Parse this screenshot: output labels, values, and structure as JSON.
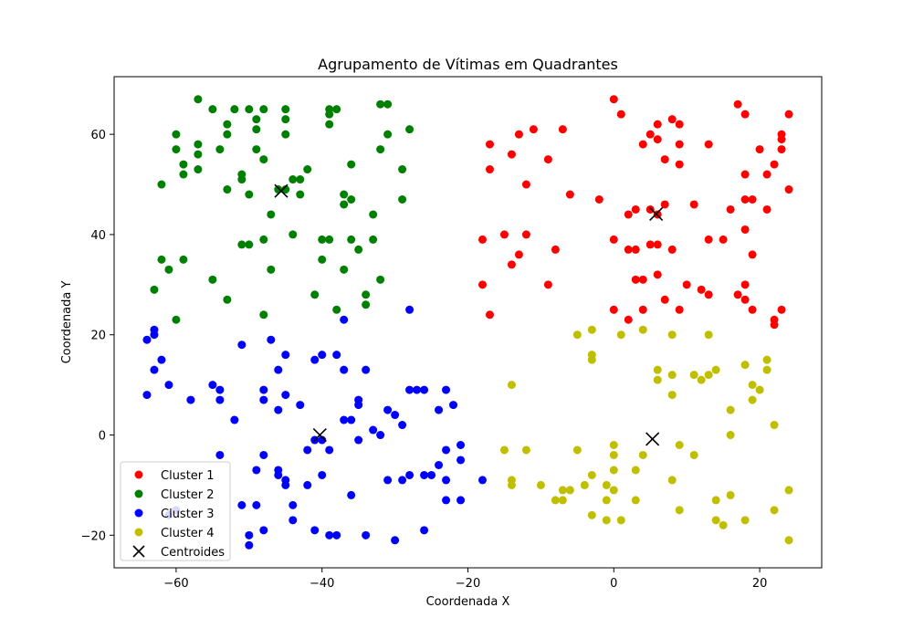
{
  "chart_data": {
    "type": "scatter",
    "title": "Agrupamento de Vítimas em Quadrantes",
    "xlabel": "Coordenada X",
    "ylabel": "Coordenada Y",
    "xlim": [
      -68.5,
      28.5
    ],
    "ylim": [
      -26.5,
      71.5
    ],
    "xticks": [
      -60,
      -40,
      -20,
      0,
      20
    ],
    "yticks": [
      -20,
      0,
      20,
      40,
      60
    ],
    "grid": false,
    "legend_position": "lower-left",
    "series": [
      {
        "name": "Cluster 1",
        "color": "#ff0000",
        "marker": "circle",
        "points": [
          [
            0,
            67
          ],
          [
            1,
            64
          ],
          [
            4,
            58
          ],
          [
            5,
            60
          ],
          [
            6,
            62
          ],
          [
            6,
            59
          ],
          [
            8,
            63
          ],
          [
            9,
            62
          ],
          [
            9,
            58
          ],
          [
            7,
            55
          ],
          [
            9,
            54
          ],
          [
            13,
            58
          ],
          [
            17,
            66
          ],
          [
            18,
            64
          ],
          [
            20,
            57
          ],
          [
            23,
            60
          ],
          [
            23,
            59
          ],
          [
            23,
            57
          ],
          [
            24,
            64
          ],
          [
            18,
            52
          ],
          [
            22,
            54
          ],
          [
            21,
            52
          ],
          [
            24,
            49
          ],
          [
            -17,
            58
          ],
          [
            -17,
            53
          ],
          [
            -13,
            60
          ],
          [
            -11,
            61
          ],
          [
            -7,
            61
          ],
          [
            -14,
            56
          ],
          [
            -9,
            55
          ],
          [
            -12,
            50
          ],
          [
            -6,
            48
          ],
          [
            -2,
            47
          ],
          [
            2,
            44
          ],
          [
            3,
            45
          ],
          [
            5,
            45
          ],
          [
            6,
            44
          ],
          [
            7,
            46
          ],
          [
            11,
            46
          ],
          [
            16,
            45
          ],
          [
            18,
            47
          ],
          [
            19,
            47
          ],
          [
            21,
            45
          ],
          [
            -18,
            39
          ],
          [
            -15,
            40
          ],
          [
            -13,
            36
          ],
          [
            -12,
            40
          ],
          [
            -14,
            34
          ],
          [
            -8,
            37
          ],
          [
            -18,
            30
          ],
          [
            -17,
            24
          ],
          [
            -9,
            30
          ],
          [
            0,
            39
          ],
          [
            2,
            37
          ],
          [
            3,
            37
          ],
          [
            5,
            38
          ],
          [
            6,
            38
          ],
          [
            8,
            37
          ],
          [
            13,
            39
          ],
          [
            15,
            39
          ],
          [
            18,
            41
          ],
          [
            19,
            36
          ],
          [
            3,
            31
          ],
          [
            4,
            31
          ],
          [
            6,
            32
          ],
          [
            10,
            30
          ],
          [
            12,
            29
          ],
          [
            13,
            28
          ],
          [
            17,
            28
          ],
          [
            18,
            30
          ],
          [
            18,
            27
          ],
          [
            7,
            27
          ],
          [
            0,
            25
          ],
          [
            2,
            23
          ],
          [
            4,
            25
          ],
          [
            9,
            25
          ],
          [
            19,
            25
          ],
          [
            22,
            23
          ],
          [
            22,
            22
          ],
          [
            23,
            25
          ]
        ]
      },
      {
        "name": "Cluster 2",
        "color": "#008000",
        "marker": "circle",
        "points": [
          [
            -57,
            67
          ],
          [
            -55,
            65
          ],
          [
            -52,
            65
          ],
          [
            -50,
            65
          ],
          [
            -48,
            65
          ],
          [
            -45,
            65
          ],
          [
            -39,
            65
          ],
          [
            -39,
            64
          ],
          [
            -38,
            65
          ],
          [
            -32,
            66
          ],
          [
            -31,
            66
          ],
          [
            -60,
            60
          ],
          [
            -53,
            62
          ],
          [
            -53,
            60
          ],
          [
            -49,
            63
          ],
          [
            -49,
            61
          ],
          [
            -45,
            63
          ],
          [
            -45,
            60
          ],
          [
            -39,
            62
          ],
          [
            -31,
            60
          ],
          [
            -28,
            61
          ],
          [
            -60,
            57
          ],
          [
            -57,
            58
          ],
          [
            -57,
            56
          ],
          [
            -54,
            57
          ],
          [
            -49,
            57
          ],
          [
            -48,
            55
          ],
          [
            -59,
            54
          ],
          [
            -59,
            52
          ],
          [
            -57,
            53
          ],
          [
            -51,
            52
          ],
          [
            -51,
            51
          ],
          [
            -36,
            54
          ],
          [
            -32,
            57
          ],
          [
            -29,
            53
          ],
          [
            -62,
            50
          ],
          [
            -53,
            49
          ],
          [
            -50,
            48
          ],
          [
            -46,
            49
          ],
          [
            -45,
            49
          ],
          [
            -44,
            51
          ],
          [
            -43,
            51
          ],
          [
            -43,
            48
          ],
          [
            -42,
            53
          ],
          [
            -37,
            48
          ],
          [
            -37,
            46
          ],
          [
            -36,
            47
          ],
          [
            -33,
            44
          ],
          [
            -29,
            47
          ],
          [
            -47,
            44
          ],
          [
            -44,
            40
          ],
          [
            -40,
            39
          ],
          [
            -39,
            39
          ],
          [
            -36,
            39
          ],
          [
            -35,
            37
          ],
          [
            -33,
            39
          ],
          [
            -51,
            38
          ],
          [
            -50,
            38
          ],
          [
            -48,
            39
          ],
          [
            -62,
            35
          ],
          [
            -61,
            33
          ],
          [
            -59,
            35
          ],
          [
            -47,
            33
          ],
          [
            -40,
            35
          ],
          [
            -37,
            33
          ],
          [
            -55,
            31
          ],
          [
            -32,
            31
          ],
          [
            -63,
            29
          ],
          [
            -53,
            27
          ],
          [
            -41,
            28
          ],
          [
            -38,
            25
          ],
          [
            -34,
            28
          ],
          [
            -34,
            26
          ],
          [
            -48,
            24
          ],
          [
            -60,
            23
          ]
        ]
      },
      {
        "name": "Cluster 3",
        "color": "#0000ff",
        "marker": "circle",
        "points": [
          [
            -63,
            21
          ],
          [
            -63,
            20
          ],
          [
            -64,
            19
          ],
          [
            -62,
            15
          ],
          [
            -63,
            13
          ],
          [
            -61,
            10
          ],
          [
            -64,
            8
          ],
          [
            -58,
            7
          ],
          [
            -51,
            18
          ],
          [
            -47,
            19
          ],
          [
            -46,
            13
          ],
          [
            -45,
            16
          ],
          [
            -37,
            23
          ],
          [
            -28,
            25
          ],
          [
            -55,
            10
          ],
          [
            -54,
            9
          ],
          [
            -54,
            7
          ],
          [
            -48,
            9
          ],
          [
            -48,
            7
          ],
          [
            -46,
            5
          ],
          [
            -45,
            8
          ],
          [
            -43,
            6
          ],
          [
            -41,
            15
          ],
          [
            -40,
            16
          ],
          [
            -38,
            16
          ],
          [
            -37,
            13
          ],
          [
            -34,
            13
          ],
          [
            -35,
            7
          ],
          [
            -35,
            6
          ],
          [
            -37,
            3
          ],
          [
            -36,
            3
          ],
          [
            -33,
            1
          ],
          [
            -32,
            0
          ],
          [
            -31,
            5
          ],
          [
            -30,
            4
          ],
          [
            -29,
            2
          ],
          [
            -28,
            9
          ],
          [
            -27,
            9
          ],
          [
            -26,
            9
          ],
          [
            -24,
            5
          ],
          [
            -23,
            9
          ],
          [
            -22,
            6
          ],
          [
            -52,
            3
          ],
          [
            -41,
            -1
          ],
          [
            -40,
            -1
          ],
          [
            -42,
            -3
          ],
          [
            -39,
            -3
          ],
          [
            -35,
            -1
          ],
          [
            -23,
            -3
          ],
          [
            -21,
            -2
          ],
          [
            -54,
            -4
          ],
          [
            -48,
            -4
          ],
          [
            -49,
            -7
          ],
          [
            -46,
            -7
          ],
          [
            -46,
            -8
          ],
          [
            -45,
            -9
          ],
          [
            -45,
            -10
          ],
          [
            -42,
            -10
          ],
          [
            -40,
            -8
          ],
          [
            -28,
            -8
          ],
          [
            -29,
            -9
          ],
          [
            -31,
            -9
          ],
          [
            -26,
            -8
          ],
          [
            -25,
            -8
          ],
          [
            -24,
            -6
          ],
          [
            -23,
            -9
          ],
          [
            -21,
            -5
          ],
          [
            -18,
            -9
          ],
          [
            -51,
            -14
          ],
          [
            -49,
            -14
          ],
          [
            -44,
            -14
          ],
          [
            -36,
            -12
          ],
          [
            -23,
            -13
          ],
          [
            -21,
            -13
          ],
          [
            -60,
            -15
          ],
          [
            -61,
            -16
          ],
          [
            -50,
            -20
          ],
          [
            -48,
            -19
          ],
          [
            -44,
            -17
          ],
          [
            -41,
            -19
          ],
          [
            -39,
            -20
          ],
          [
            -38,
            -20
          ],
          [
            -34,
            -20
          ],
          [
            -30,
            -21
          ],
          [
            -26,
            -19
          ],
          [
            -50,
            -22
          ]
        ]
      },
      {
        "name": "Cluster 4",
        "color": "#bfbf00",
        "marker": "circle",
        "points": [
          [
            -5,
            20
          ],
          [
            -3,
            21
          ],
          [
            1,
            20
          ],
          [
            4,
            21
          ],
          [
            8,
            20
          ],
          [
            13,
            20
          ],
          [
            -3,
            16
          ],
          [
            -3,
            15
          ],
          [
            6,
            13
          ],
          [
            6,
            11
          ],
          [
            8,
            12
          ],
          [
            11,
            12
          ],
          [
            12,
            11
          ],
          [
            13,
            12
          ],
          [
            14,
            13
          ],
          [
            18,
            14
          ],
          [
            21,
            15
          ],
          [
            21,
            13
          ],
          [
            -14,
            10
          ],
          [
            19,
            10
          ],
          [
            20,
            9
          ],
          [
            8,
            8
          ],
          [
            19,
            7
          ],
          [
            16,
            5
          ],
          [
            22,
            2
          ],
          [
            16,
            0
          ],
          [
            -15,
            -3
          ],
          [
            -12,
            -3
          ],
          [
            -5,
            -3
          ],
          [
            0,
            -2
          ],
          [
            0,
            -4
          ],
          [
            4,
            -4
          ],
          [
            9,
            -2
          ],
          [
            11,
            -4
          ],
          [
            -14,
            -9
          ],
          [
            -14,
            -10
          ],
          [
            -10,
            -10
          ],
          [
            -7,
            -11
          ],
          [
            -6,
            -11
          ],
          [
            -4,
            -10
          ],
          [
            -3,
            -8
          ],
          [
            -1,
            -10
          ],
          [
            0,
            -7
          ],
          [
            0,
            -11
          ],
          [
            3,
            -7
          ],
          [
            8,
            -9
          ],
          [
            24,
            -11
          ],
          [
            -8,
            -13
          ],
          [
            -7,
            -13
          ],
          [
            -1,
            -13
          ],
          [
            3,
            -13
          ],
          [
            14,
            -13
          ],
          [
            16,
            -12
          ],
          [
            -3,
            -16
          ],
          [
            -1,
            -17
          ],
          [
            1,
            -17
          ],
          [
            9,
            -15
          ],
          [
            14,
            -17
          ],
          [
            15,
            -18
          ],
          [
            18,
            -17
          ],
          [
            22,
            -15
          ],
          [
            24,
            -21
          ]
        ]
      },
      {
        "name": "Centroides",
        "color": "#000000",
        "marker": "x",
        "points": [
          [
            5.8,
            44.1
          ],
          [
            -45.6,
            48.7
          ],
          [
            -40.3,
            0.0
          ],
          [
            5.3,
            -0.8
          ]
        ]
      }
    ]
  }
}
